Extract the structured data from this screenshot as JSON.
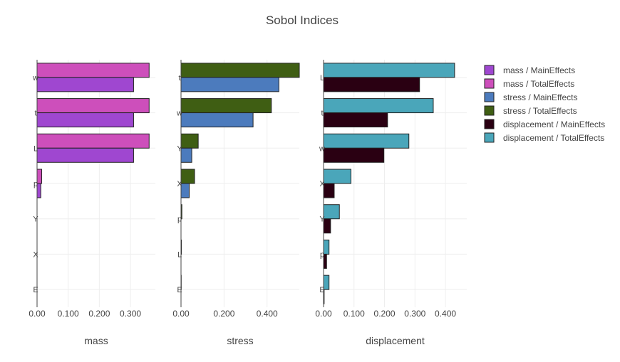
{
  "chart_data": {
    "type": "bar",
    "title": "Sobol Indices",
    "colors": {
      "mass / MainEffects": "#9f47d0",
      "mass / TotalEffects": "#cd4fbb",
      "stress / MainEffects": "#4c7bbd",
      "stress / TotalEffects": "#3f5e13",
      "displacement / MainEffects": "#2a0012",
      "displacement / TotalEffects": "#4aa6ba"
    },
    "legend": {
      "position": "top-right",
      "entries": [
        "mass / MainEffects",
        "mass / TotalEffects",
        "stress / MainEffects",
        "stress / TotalEffects",
        "displacement / MainEffects",
        "displacement / TotalEffects"
      ]
    },
    "panels": [
      {
        "xlabel": "mass",
        "xlim": [
          0,
          0.38
        ],
        "xticks": [
          0,
          0.1,
          0.2,
          0.3
        ],
        "xtick_labels": [
          "0.00",
          "0.100",
          "0.200",
          "0.300"
        ],
        "categories": [
          "w",
          "t",
          "L",
          "p",
          "Y",
          "X",
          "E"
        ],
        "series": [
          {
            "name": "mass / TotalEffects",
            "values": [
              0.36,
              0.36,
              0.36,
              0.015,
              0,
              0,
              0
            ]
          },
          {
            "name": "mass / MainEffects",
            "values": [
              0.31,
              0.31,
              0.31,
              0.012,
              0,
              0,
              0
            ]
          }
        ]
      },
      {
        "xlabel": "stress",
        "xlim": [
          0,
          0.55
        ],
        "xticks": [
          0,
          0.2,
          0.4
        ],
        "xtick_labels": [
          "0.00",
          "0.200",
          "0.400"
        ],
        "categories": [
          "t",
          "w",
          "Y",
          "X",
          "p",
          "L",
          "E"
        ],
        "series": [
          {
            "name": "stress / TotalEffects",
            "values": [
              0.55,
              0.42,
              0.08,
              0.063,
              0.004,
              0.002,
              0.001
            ]
          },
          {
            "name": "stress / MainEffects",
            "values": [
              0.455,
              0.335,
              0.05,
              0.038,
              0,
              0,
              0
            ]
          }
        ]
      },
      {
        "xlabel": "displacement",
        "xlim": [
          0,
          0.47
        ],
        "xticks": [
          0,
          0.1,
          0.2,
          0.3,
          0.4
        ],
        "xtick_labels": [
          "0.00",
          "0.100",
          "0.200",
          "0.300",
          "0.400"
        ],
        "categories": [
          "L",
          "t",
          "w",
          "X",
          "Y",
          "p",
          "E"
        ],
        "series": [
          {
            "name": "displacement / TotalEffects",
            "values": [
              0.43,
              0.36,
              0.28,
              0.09,
              0.052,
              0.018,
              0.018
            ]
          },
          {
            "name": "displacement / MainEffects",
            "values": [
              0.315,
              0.21,
              0.198,
              0.035,
              0.023,
              0.01,
              0.002
            ]
          }
        ]
      }
    ]
  }
}
